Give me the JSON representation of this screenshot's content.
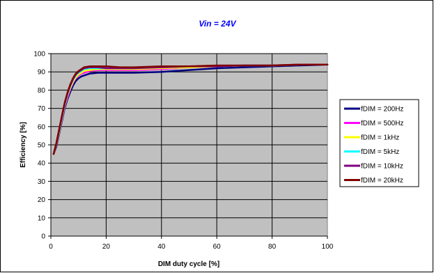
{
  "chart_data": {
    "type": "line",
    "title": "Vin = 24V",
    "title_color": "#0000ff",
    "xlabel": "DIM duty cycle [%]",
    "ylabel": "Efficiency [%]",
    "xlim": [
      0,
      100
    ],
    "ylim": [
      0,
      100
    ],
    "x_ticks": [
      0,
      20,
      40,
      60,
      80,
      100
    ],
    "y_ticks": [
      0,
      10,
      20,
      30,
      40,
      50,
      60,
      70,
      80,
      90,
      100
    ],
    "grid": true,
    "plot_background": "#c0c0c0",
    "legend_position": "right",
    "series": [
      {
        "name": "fDIM = 200Hz",
        "color": "#000080",
        "points": [
          [
            1,
            45
          ],
          [
            2,
            49
          ],
          [
            3,
            56
          ],
          [
            4,
            63
          ],
          [
            5,
            70
          ],
          [
            6,
            75
          ],
          [
            7,
            79
          ],
          [
            8,
            82.5
          ],
          [
            9,
            85
          ],
          [
            10,
            86.5
          ],
          [
            11,
            87.5
          ],
          [
            12,
            88
          ],
          [
            14,
            89
          ],
          [
            17,
            89.5
          ],
          [
            20,
            89.5
          ],
          [
            30,
            89.5
          ],
          [
            40,
            90
          ],
          [
            50,
            91
          ],
          [
            60,
            92
          ],
          [
            70,
            92.5
          ],
          [
            80,
            93
          ],
          [
            90,
            93.5
          ],
          [
            100,
            94
          ]
        ]
      },
      {
        "name": "fDIM = 500Hz",
        "color": "#ff00ff",
        "points": [
          [
            1,
            45
          ],
          [
            2,
            50
          ],
          [
            3,
            57
          ],
          [
            4,
            64
          ],
          [
            5,
            71
          ],
          [
            6,
            76
          ],
          [
            7,
            80.5
          ],
          [
            8,
            84
          ],
          [
            9,
            86.5
          ],
          [
            10,
            88
          ],
          [
            11,
            89
          ],
          [
            12,
            89.5
          ],
          [
            14,
            90.5
          ],
          [
            17,
            91
          ],
          [
            20,
            91
          ],
          [
            30,
            91
          ],
          [
            40,
            91.5
          ],
          [
            50,
            92.5
          ],
          [
            60,
            93
          ],
          [
            70,
            93.5
          ],
          [
            80,
            93.5
          ],
          [
            90,
            94
          ],
          [
            100,
            94
          ]
        ]
      },
      {
        "name": "fDIM = 1kHz",
        "color": "#ffff00",
        "points": [
          [
            1,
            45
          ],
          [
            2,
            50
          ],
          [
            3,
            57
          ],
          [
            4,
            64.5
          ],
          [
            5,
            71.5
          ],
          [
            6,
            77
          ],
          [
            7,
            81
          ],
          [
            8,
            84.5
          ],
          [
            9,
            87
          ],
          [
            10,
            88.5
          ],
          [
            11,
            89.5
          ],
          [
            12,
            90.5
          ],
          [
            14,
            91
          ],
          [
            17,
            91.5
          ],
          [
            20,
            91.5
          ],
          [
            30,
            91.5
          ],
          [
            40,
            92
          ],
          [
            50,
            92.5
          ],
          [
            60,
            93
          ],
          [
            70,
            93.5
          ],
          [
            80,
            93.5
          ],
          [
            90,
            94
          ],
          [
            100,
            94
          ]
        ]
      },
      {
        "name": "fDIM = 5kHz",
        "color": "#00ffff",
        "points": [
          [
            1,
            45
          ],
          [
            2,
            50.5
          ],
          [
            3,
            57.5
          ],
          [
            4,
            65
          ],
          [
            5,
            72
          ],
          [
            6,
            77.5
          ],
          [
            7,
            82
          ],
          [
            8,
            85.5
          ],
          [
            9,
            88
          ],
          [
            10,
            89.5
          ],
          [
            11,
            90.5
          ],
          [
            12,
            91.5
          ],
          [
            14,
            92
          ],
          [
            17,
            92
          ],
          [
            20,
            92
          ],
          [
            30,
            92
          ],
          [
            40,
            92.5
          ],
          [
            50,
            93
          ],
          [
            60,
            93
          ],
          [
            70,
            93.5
          ],
          [
            80,
            93.5
          ],
          [
            90,
            94
          ],
          [
            100,
            94
          ]
        ]
      },
      {
        "name": "fDIM = 10kHz",
        "color": "#800080",
        "points": [
          [
            1,
            45
          ],
          [
            2,
            50.5
          ],
          [
            3,
            58
          ],
          [
            4,
            65.5
          ],
          [
            5,
            72.5
          ],
          [
            6,
            78
          ],
          [
            7,
            82.5
          ],
          [
            8,
            86
          ],
          [
            9,
            88.5
          ],
          [
            10,
            90
          ],
          [
            11,
            91
          ],
          [
            12,
            92
          ],
          [
            14,
            92.5
          ],
          [
            17,
            92.5
          ],
          [
            20,
            92
          ],
          [
            30,
            92
          ],
          [
            40,
            92.5
          ],
          [
            50,
            93
          ],
          [
            60,
            93
          ],
          [
            70,
            93.5
          ],
          [
            80,
            93.5
          ],
          [
            90,
            94
          ],
          [
            100,
            94
          ]
        ]
      },
      {
        "name": "fDIM = 20kHz",
        "color": "#800000",
        "points": [
          [
            1,
            45
          ],
          [
            2,
            51
          ],
          [
            3,
            58.5
          ],
          [
            4,
            66
          ],
          [
            5,
            73
          ],
          [
            6,
            78.5
          ],
          [
            7,
            83
          ],
          [
            8,
            86.5
          ],
          [
            9,
            89
          ],
          [
            10,
            90.5
          ],
          [
            11,
            91.5
          ],
          [
            12,
            92.5
          ],
          [
            14,
            93
          ],
          [
            17,
            93
          ],
          [
            20,
            93
          ],
          [
            25,
            92.5
          ],
          [
            30,
            92.5
          ],
          [
            40,
            93
          ],
          [
            50,
            93
          ],
          [
            60,
            93.5
          ],
          [
            70,
            93.5
          ],
          [
            80,
            93.5
          ],
          [
            90,
            94
          ],
          [
            100,
            94
          ]
        ]
      }
    ]
  }
}
